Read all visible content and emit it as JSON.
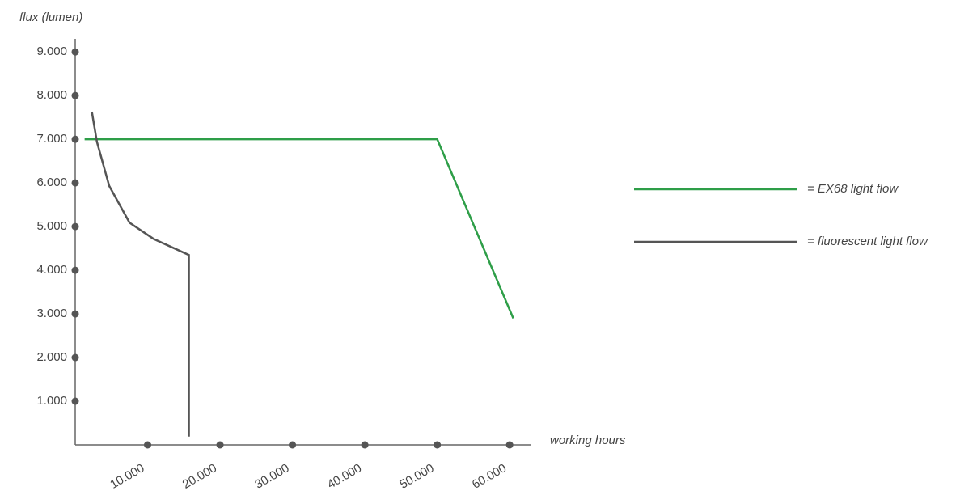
{
  "chart_data": {
    "type": "line",
    "y_label": "flux (lumen)",
    "x_label": "working hours",
    "xlim": [
      0,
      63000
    ],
    "ylim": [
      0,
      9300
    ],
    "xticks": [
      {
        "value": 10000,
        "label": "10.000"
      },
      {
        "value": 20000,
        "label": "20.000"
      },
      {
        "value": 30000,
        "label": "30.000"
      },
      {
        "value": 40000,
        "label": "40.000"
      },
      {
        "value": 50000,
        "label": "50.000"
      },
      {
        "value": 60000,
        "label": "60.000"
      }
    ],
    "yticks": [
      {
        "value": 1000,
        "label": "1.000"
      },
      {
        "value": 2000,
        "label": "2.000"
      },
      {
        "value": 3000,
        "label": "3.000"
      },
      {
        "value": 4000,
        "label": "4.000"
      },
      {
        "value": 5000,
        "label": "5.000"
      },
      {
        "value": 6000,
        "label": "6.000"
      },
      {
        "value": 7000,
        "label": "7.000"
      },
      {
        "value": 8000,
        "label": "8.000"
      },
      {
        "value": 9000,
        "label": "9.000"
      }
    ],
    "series": [
      {
        "name": "= EX68 light flow",
        "color": "#2e9e48",
        "x": [
          1300,
          50000,
          60500
        ],
        "values": [
          7000,
          7000,
          2900
        ]
      },
      {
        "name": "= fluorescent light flow",
        "color": "#555555",
        "x": [
          2300,
          3000,
          4700,
          7500,
          10800,
          15700,
          15700
        ],
        "values": [
          7630,
          6940,
          5930,
          5090,
          4720,
          4350,
          190
        ]
      }
    ]
  }
}
